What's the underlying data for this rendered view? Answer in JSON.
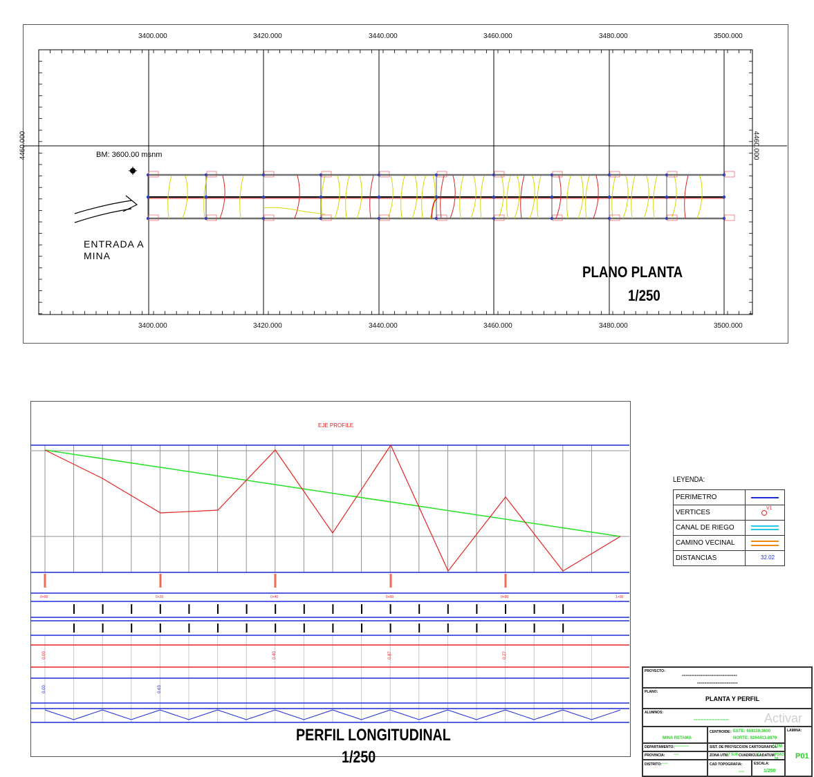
{
  "plan": {
    "title": "PLANO PLANTA",
    "scale": "1/250",
    "benchmark": "BM:  3600.00  msnm",
    "entrance_line1": "ENTRADA A",
    "entrance_line2": "MINA",
    "x_ticks": [
      "3400.000",
      "3420.000",
      "3440.000",
      "3460.000",
      "3480.000",
      "3500.000"
    ],
    "y_tick": "4460.000"
  },
  "profile": {
    "title": "PERFIL LONGITUDINAL",
    "scale": "1/250",
    "axis_label": "EJE PROFILE",
    "red_values": [
      "0.00",
      "0.40",
      "0.87",
      "0.27"
    ],
    "blue_values": [
      "0.00",
      "0.63"
    ],
    "station_labels": [
      "0+00",
      "0+20",
      "0+40",
      "0+60",
      "0+80",
      "1+00"
    ]
  },
  "legend": {
    "title": "LEYENDA:",
    "items": [
      {
        "name": "PERIMETRO",
        "symbol": "blue-line"
      },
      {
        "name": "VERTICES",
        "symbol": "vertex-marker",
        "sym_text": "V1"
      },
      {
        "name": "CANAL  DE  RIEGO",
        "symbol": "cyan-double-line"
      },
      {
        "name": "CAMINO  VECINAL",
        "symbol": "orange-double-line"
      },
      {
        "name": "DISTANCIAS",
        "symbol": "distance-text",
        "sym_text": "32.02"
      }
    ]
  },
  "title_block": {
    "proyecto_label": "PROYECTO:",
    "proyecto_line1": "------------------------------",
    "proyecto_line2": "----------------------",
    "plano_label": "PLANO:",
    "plano_value": "PLANTA  Y  PERFIL",
    "alumnos_label": "ALUMNOS:",
    "alumnos_value": "-------------------",
    "mina_name": "MINA  RETAMA",
    "centroide_label": "CENTROIDE:",
    "este": "ESTE:  658110.3600",
    "norte": "NORTE:  9264413.8970",
    "lamina_label": "LAMINA:",
    "lamina_value": "P01",
    "departamento_label": "DEPARTAMENTO:",
    "departamento_value": "-----------",
    "sist_label": "SIST. DE PROYECCION CARTOGRAFICA:",
    "sist_value": "UTM",
    "provincia_label": "PROVINCIA:",
    "provincia_value": "----",
    "zona_label": "ZONA UTM:",
    "zona_value": "17 SUR",
    "cuadricula_label": "CUADRICULA:",
    "cuadricula_value": "L",
    "datum_label": "DATUM:",
    "datum_value": "PSAD 56",
    "distrito_label": "DISTRITO:",
    "distrito_value": "-----",
    "cad_label": "CAD TOPOGRAFIA:",
    "cad_value": "----",
    "escala_label": "ESCALA:",
    "escala_value": "1/250",
    "watermark": "Activar"
  },
  "colors": {
    "grid": "#000000",
    "perimeter": "#1c2bd6",
    "profile_red": "#e52222",
    "profile_green": "#22e222",
    "contour_yellow": "#d8d800",
    "contour_red": "#d82222",
    "cyan": "#22c8e8",
    "orange": "#ee8a10"
  }
}
